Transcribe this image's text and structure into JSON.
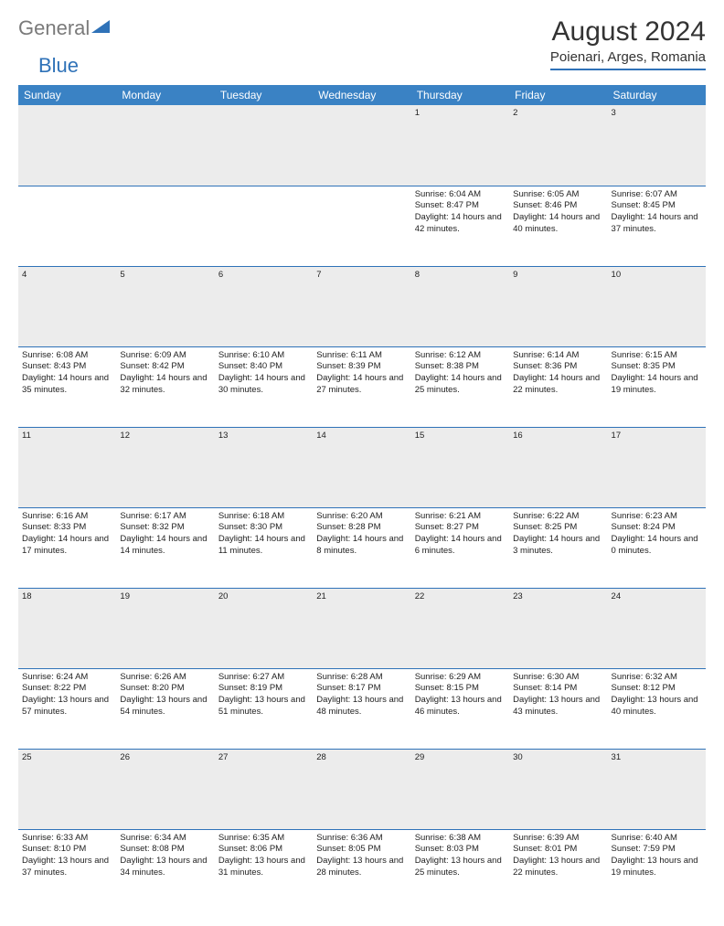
{
  "logo": {
    "gray": "General",
    "blue": "Blue"
  },
  "title": "August 2024",
  "location": "Poienari, Arges, Romania",
  "colors": {
    "header_bg": "#3a82c4",
    "rule": "#2f72b8",
    "daynum_bg": "#ececec",
    "text": "#222222",
    "logo_gray": "#7a7a7a",
    "logo_blue": "#2f72b8"
  },
  "typography": {
    "title_fontsize": 30,
    "location_fontsize": 15,
    "header_fontsize": 12,
    "daynum_fontsize": 11,
    "body_fontsize": 9.5
  },
  "weekdays": [
    "Sunday",
    "Monday",
    "Tuesday",
    "Wednesday",
    "Thursday",
    "Friday",
    "Saturday"
  ],
  "weeks": [
    [
      null,
      null,
      null,
      null,
      {
        "n": "1",
        "sr": "6:04 AM",
        "ss": "8:47 PM",
        "dl": "14 hours and 42 minutes."
      },
      {
        "n": "2",
        "sr": "6:05 AM",
        "ss": "8:46 PM",
        "dl": "14 hours and 40 minutes."
      },
      {
        "n": "3",
        "sr": "6:07 AM",
        "ss": "8:45 PM",
        "dl": "14 hours and 37 minutes."
      }
    ],
    [
      {
        "n": "4",
        "sr": "6:08 AM",
        "ss": "8:43 PM",
        "dl": "14 hours and 35 minutes."
      },
      {
        "n": "5",
        "sr": "6:09 AM",
        "ss": "8:42 PM",
        "dl": "14 hours and 32 minutes."
      },
      {
        "n": "6",
        "sr": "6:10 AM",
        "ss": "8:40 PM",
        "dl": "14 hours and 30 minutes."
      },
      {
        "n": "7",
        "sr": "6:11 AM",
        "ss": "8:39 PM",
        "dl": "14 hours and 27 minutes."
      },
      {
        "n": "8",
        "sr": "6:12 AM",
        "ss": "8:38 PM",
        "dl": "14 hours and 25 minutes."
      },
      {
        "n": "9",
        "sr": "6:14 AM",
        "ss": "8:36 PM",
        "dl": "14 hours and 22 minutes."
      },
      {
        "n": "10",
        "sr": "6:15 AM",
        "ss": "8:35 PM",
        "dl": "14 hours and 19 minutes."
      }
    ],
    [
      {
        "n": "11",
        "sr": "6:16 AM",
        "ss": "8:33 PM",
        "dl": "14 hours and 17 minutes."
      },
      {
        "n": "12",
        "sr": "6:17 AM",
        "ss": "8:32 PM",
        "dl": "14 hours and 14 minutes."
      },
      {
        "n": "13",
        "sr": "6:18 AM",
        "ss": "8:30 PM",
        "dl": "14 hours and 11 minutes."
      },
      {
        "n": "14",
        "sr": "6:20 AM",
        "ss": "8:28 PM",
        "dl": "14 hours and 8 minutes."
      },
      {
        "n": "15",
        "sr": "6:21 AM",
        "ss": "8:27 PM",
        "dl": "14 hours and 6 minutes."
      },
      {
        "n": "16",
        "sr": "6:22 AM",
        "ss": "8:25 PM",
        "dl": "14 hours and 3 minutes."
      },
      {
        "n": "17",
        "sr": "6:23 AM",
        "ss": "8:24 PM",
        "dl": "14 hours and 0 minutes."
      }
    ],
    [
      {
        "n": "18",
        "sr": "6:24 AM",
        "ss": "8:22 PM",
        "dl": "13 hours and 57 minutes."
      },
      {
        "n": "19",
        "sr": "6:26 AM",
        "ss": "8:20 PM",
        "dl": "13 hours and 54 minutes."
      },
      {
        "n": "20",
        "sr": "6:27 AM",
        "ss": "8:19 PM",
        "dl": "13 hours and 51 minutes."
      },
      {
        "n": "21",
        "sr": "6:28 AM",
        "ss": "8:17 PM",
        "dl": "13 hours and 48 minutes."
      },
      {
        "n": "22",
        "sr": "6:29 AM",
        "ss": "8:15 PM",
        "dl": "13 hours and 46 minutes."
      },
      {
        "n": "23",
        "sr": "6:30 AM",
        "ss": "8:14 PM",
        "dl": "13 hours and 43 minutes."
      },
      {
        "n": "24",
        "sr": "6:32 AM",
        "ss": "8:12 PM",
        "dl": "13 hours and 40 minutes."
      }
    ],
    [
      {
        "n": "25",
        "sr": "6:33 AM",
        "ss": "8:10 PM",
        "dl": "13 hours and 37 minutes."
      },
      {
        "n": "26",
        "sr": "6:34 AM",
        "ss": "8:08 PM",
        "dl": "13 hours and 34 minutes."
      },
      {
        "n": "27",
        "sr": "6:35 AM",
        "ss": "8:06 PM",
        "dl": "13 hours and 31 minutes."
      },
      {
        "n": "28",
        "sr": "6:36 AM",
        "ss": "8:05 PM",
        "dl": "13 hours and 28 minutes."
      },
      {
        "n": "29",
        "sr": "6:38 AM",
        "ss": "8:03 PM",
        "dl": "13 hours and 25 minutes."
      },
      {
        "n": "30",
        "sr": "6:39 AM",
        "ss": "8:01 PM",
        "dl": "13 hours and 22 minutes."
      },
      {
        "n": "31",
        "sr": "6:40 AM",
        "ss": "7:59 PM",
        "dl": "13 hours and 19 minutes."
      }
    ]
  ],
  "labels": {
    "sunrise": "Sunrise: ",
    "sunset": "Sunset: ",
    "daylight": "Daylight: "
  }
}
